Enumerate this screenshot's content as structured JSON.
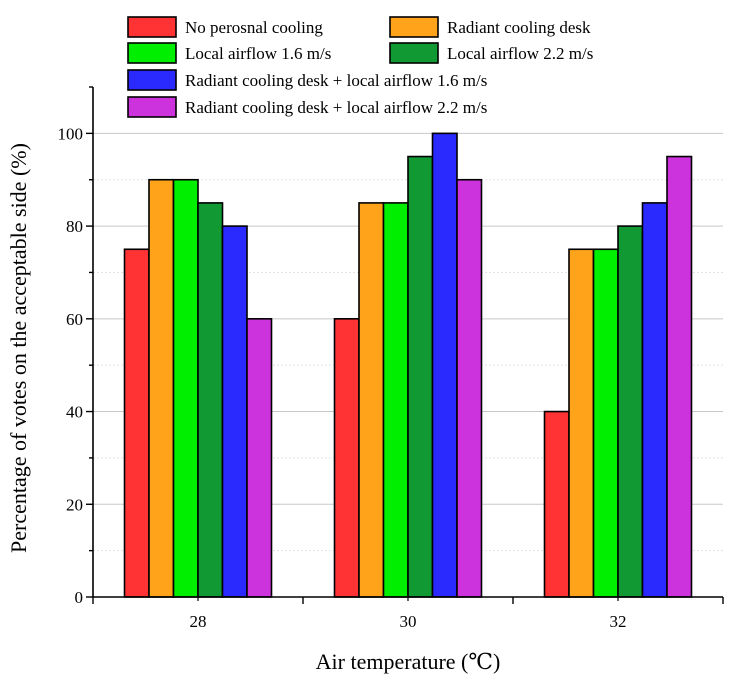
{
  "chart_data": {
    "type": "bar",
    "xlabel": "Air temperature (℃)",
    "ylabel": "Percentage of votes on the acceptable side (%)",
    "categories": [
      "28",
      "30",
      "32"
    ],
    "ylim": [
      0,
      110
    ],
    "yticks": [
      0,
      20,
      40,
      60,
      80,
      100
    ],
    "grid": true,
    "legend_position": "top",
    "series": [
      {
        "name": "No perosnal cooling",
        "color": "#ff3333",
        "values": [
          75,
          60,
          40
        ]
      },
      {
        "name": "Radiant cooling desk",
        "color": "#ffa31a",
        "values": [
          90,
          85,
          75
        ]
      },
      {
        "name": "Local airflow 1.6 m/s",
        "color": "#00ee00",
        "values": [
          90,
          85,
          75
        ]
      },
      {
        "name": "Local airflow 2.2 m/s",
        "color": "#119933",
        "values": [
          85,
          95,
          80
        ]
      },
      {
        "name": "Radiant cooling desk + local airflow 1.6 m/s",
        "color": "#2a2aff",
        "values": [
          80,
          100,
          85
        ]
      },
      {
        "name": "Radiant cooling desk + local airflow 2.2 m/s",
        "color": "#cc33dd",
        "values": [
          60,
          90,
          95
        ]
      }
    ]
  }
}
